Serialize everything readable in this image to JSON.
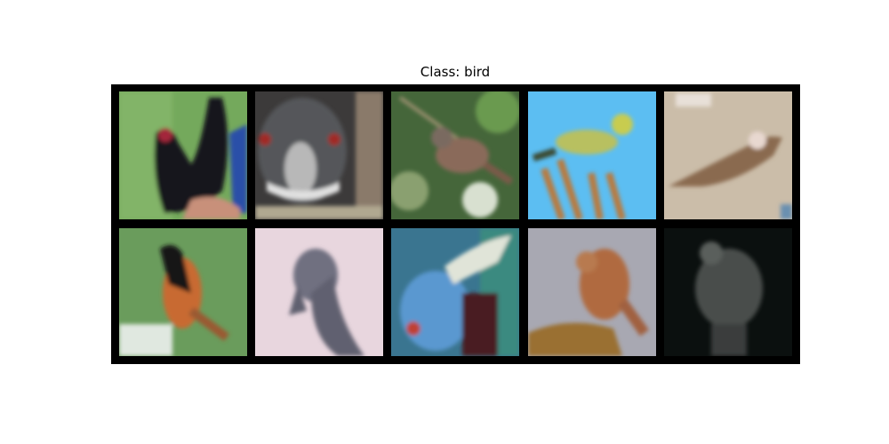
{
  "title": "Class: bird"
}
